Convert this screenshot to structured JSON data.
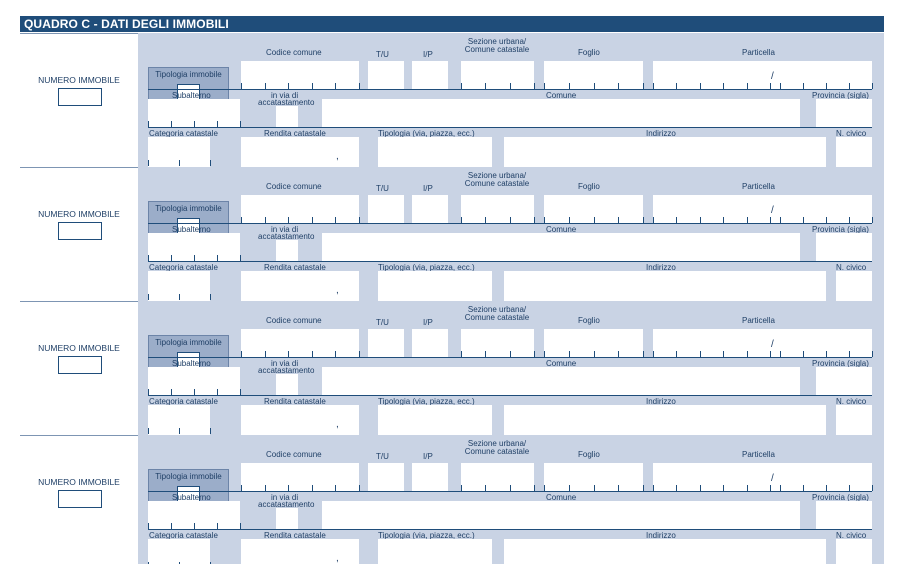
{
  "form": {
    "title": "QUADRO C - DATI DEGLI IMMOBILI"
  },
  "labels": {
    "numero_immobile": "NUMERO IMMOBILE",
    "tipologia_immobile": "Tipologia immobile",
    "codice_comune": "Codice comune",
    "tu": "T/U",
    "ip": "I/P",
    "sezione_line1": "Sezione urbana/",
    "sezione_line2": "Comune catastale",
    "foglio": "Foglio",
    "particella": "Particella",
    "particella_sep": "/",
    "subalterno": "Subalterno",
    "in_via_line1": "in via di",
    "in_via_line2": "accatastamento",
    "comune": "Comune",
    "provincia": "Provincia (sigla)",
    "categoria_catastale": "Categoria catastale",
    "rendita_catastale": "Rendita catastale",
    "rendita_sep": ",",
    "tipologia_via": "Tipologia (via, piazza, ecc.)",
    "indirizzo": "Indirizzo",
    "n_civico": "N. civico"
  },
  "sections": [
    {
      "id": 1
    },
    {
      "id": 2
    },
    {
      "id": 3
    },
    {
      "id": 4
    }
  ]
}
